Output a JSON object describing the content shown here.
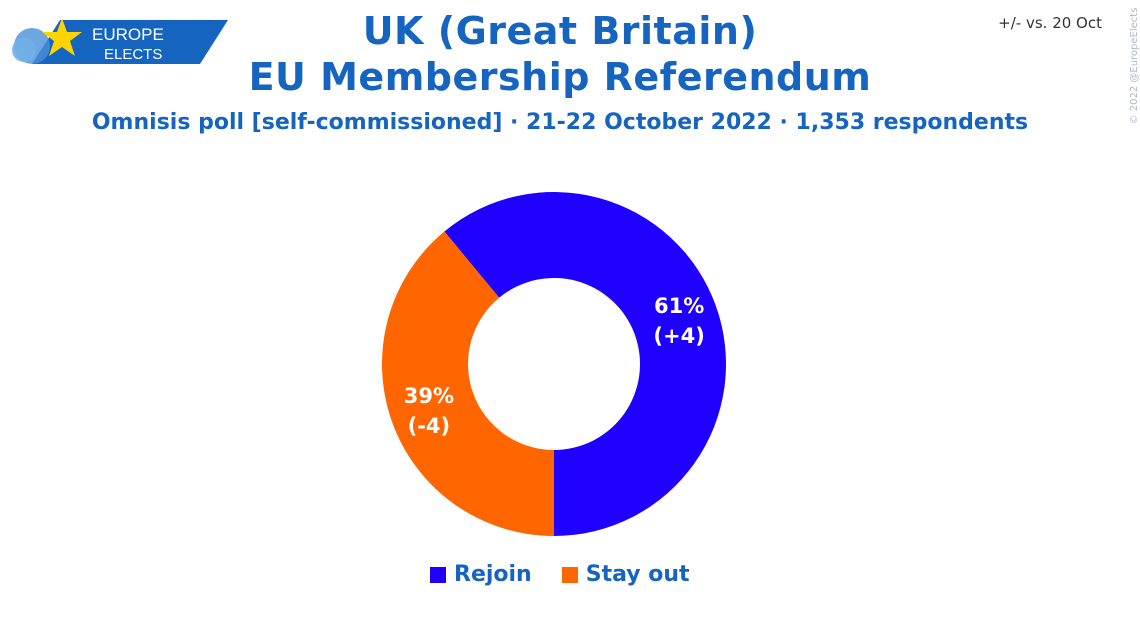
{
  "logo": {
    "line1": "EUROPE",
    "line2": "ELECTS"
  },
  "header": {
    "title_line1": "UK (Great Britain)",
    "title_line2": "EU Membership Referendum",
    "subtitle": "Omnisis poll [self-commissioned] · 21-22 October 2022 · 1,353 respondents",
    "compare_note": "+/- vs. 20 Oct",
    "copyright": "© 2022 @EuropeElects"
  },
  "chart_data": {
    "type": "pie",
    "donut": true,
    "categories": [
      "Rejoin",
      "Stay out"
    ],
    "values": [
      61,
      39
    ],
    "changes": [
      "+4",
      "-4"
    ],
    "labels": [
      "61%",
      "39%"
    ],
    "change_labels": [
      "(+4)",
      "(-4)"
    ],
    "colors": [
      "#1f00ff",
      "#ff6600"
    ],
    "legend_position": "bottom"
  }
}
